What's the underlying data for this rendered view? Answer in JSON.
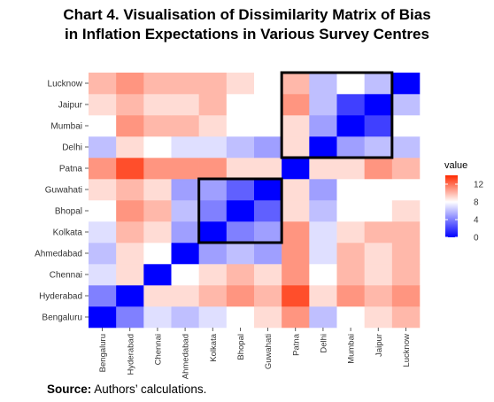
{
  "figure": {
    "title_line1": "Chart 4. Visualisation  of Dissimilarity Matrix of Bias",
    "title_line2": "in Inflation  Expectations  in Various Survey Centres",
    "source_label": "Source:",
    "source_text": " Authors’ calculations."
  },
  "chart_data": {
    "type": "heatmap",
    "title": "Chart 4. Visualisation of Dissimilarity Matrix of Bias in Inflation Expectations in Various Survey Centres",
    "xlabel": "",
    "ylabel": "",
    "x_categories": [
      "Bengaluru",
      "Hyderabad",
      "Chennai",
      "Ahmedabad",
      "Kolkata",
      "Bhopal",
      "Guwahati",
      "Patna",
      "Delhi",
      "Mumbai",
      "Jaipur",
      "Lucknow"
    ],
    "y_categories": [
      "Bengaluru",
      "Hyderabad",
      "Chennai",
      "Ahmedabad",
      "Kolkata",
      "Bhopal",
      "Guwahati",
      "Patna",
      "Delhi",
      "Mumbai",
      "Jaipur",
      "Lucknow"
    ],
    "values": [
      [
        0,
        4,
        7,
        6,
        7,
        8,
        9,
        11,
        6,
        8,
        9,
        10
      ],
      [
        4,
        0,
        9,
        9,
        10,
        11,
        10,
        13,
        9,
        11,
        10,
        11
      ],
      [
        7,
        9,
        0,
        8,
        9,
        10,
        9,
        11,
        8,
        10,
        9,
        10
      ],
      [
        6,
        9,
        8,
        0,
        5,
        6,
        5,
        11,
        7,
        10,
        9,
        10
      ],
      [
        7,
        10,
        9,
        5,
        0,
        4,
        5,
        11,
        7,
        9,
        10,
        10
      ],
      [
        8,
        11,
        10,
        6,
        4,
        0,
        3,
        9,
        6,
        8,
        8,
        9
      ],
      [
        9,
        10,
        9,
        5,
        5,
        3,
        0,
        9,
        5,
        8,
        8,
        8
      ],
      [
        11,
        13,
        11,
        11,
        11,
        9,
        9,
        0,
        9,
        9,
        11,
        10
      ],
      [
        6,
        9,
        8,
        7,
        7,
        6,
        5,
        9,
        0,
        5,
        6,
        6
      ],
      [
        8,
        11,
        10,
        10,
        9,
        8,
        8,
        9,
        5,
        0,
        2,
        8
      ],
      [
        9,
        10,
        9,
        9,
        10,
        8,
        8,
        11,
        6,
        2,
        0,
        6
      ],
      [
        10,
        11,
        10,
        10,
        10,
        9,
        8,
        10,
        6,
        8,
        6,
        0
      ]
    ],
    "color_scale": {
      "low": "#0000ff",
      "mid": "#ffffff",
      "high": "#ff2a00",
      "midpoint": 8,
      "range": [
        0,
        14
      ]
    },
    "legend": {
      "title": "value",
      "ticks": [
        0,
        4,
        8,
        12
      ],
      "placement": "right"
    },
    "highlight_boxes": [
      {
        "x_from": "Kolkata",
        "x_to": "Guwahati",
        "y_from": "Kolkata",
        "y_to": "Guwahati"
      },
      {
        "x_from": "Patna",
        "x_to": "Jaipur",
        "y_from": "Delhi",
        "y_to": "Lucknow"
      }
    ],
    "grid": true
  },
  "colors": {
    "panel_background": "#ebebeb",
    "grid_line": "#ffffff",
    "highlight_box": "#000000",
    "axis_text": "#333333"
  }
}
